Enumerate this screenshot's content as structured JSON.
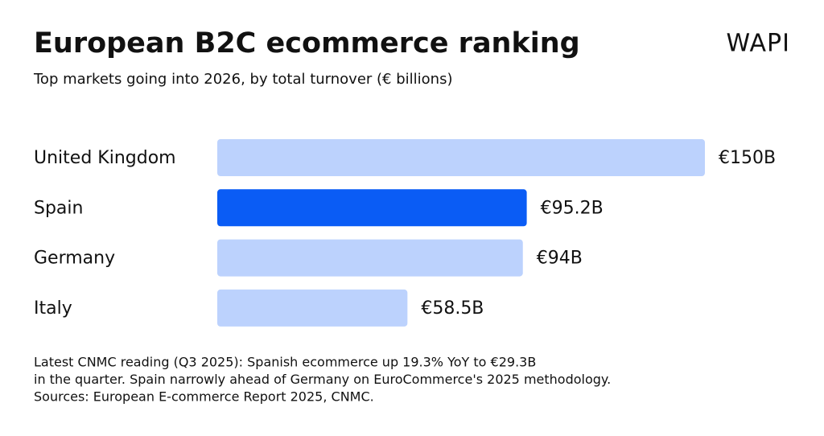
{
  "chart_data": {
    "type": "bar",
    "orientation": "horizontal",
    "title": "European B2C ecommerce ranking",
    "subtitle": "Top markets going into 2026, by total turnover (€ billions)",
    "logo": "WAPI",
    "categories": [
      "United Kingdom",
      "Spain",
      "Germany",
      "Italy"
    ],
    "values": [
      150,
      95.2,
      94,
      58.5
    ],
    "value_labels": [
      "€150B",
      "€95.2B",
      "€94B",
      "€58.5B"
    ],
    "colors": [
      "#bcd2fd",
      "#0a5cf5",
      "#bcd2fd",
      "#bcd2fd"
    ],
    "notes": [
      "Latest CNMC reading (Q3 2025): Spanish ecommerce up 19.3% YoY to €29.3B",
      "in the quarter. Spain narrowly ahead of Germany on EuroCommerce's 2025 methodology.",
      "Sources: European E-commerce Report 2025, CNMC."
    ]
  }
}
